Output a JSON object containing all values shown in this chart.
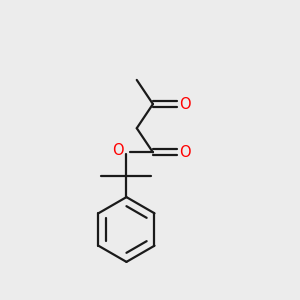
{
  "bg_color": "#ececec",
  "bond_color": "#1a1a1a",
  "oxygen_color": "#ff0000",
  "line_width": 1.6,
  "fig_size": [
    3.0,
    3.0
  ],
  "dpi": 100,
  "xlim": [
    0,
    10
  ],
  "ylim": [
    0,
    10
  ]
}
